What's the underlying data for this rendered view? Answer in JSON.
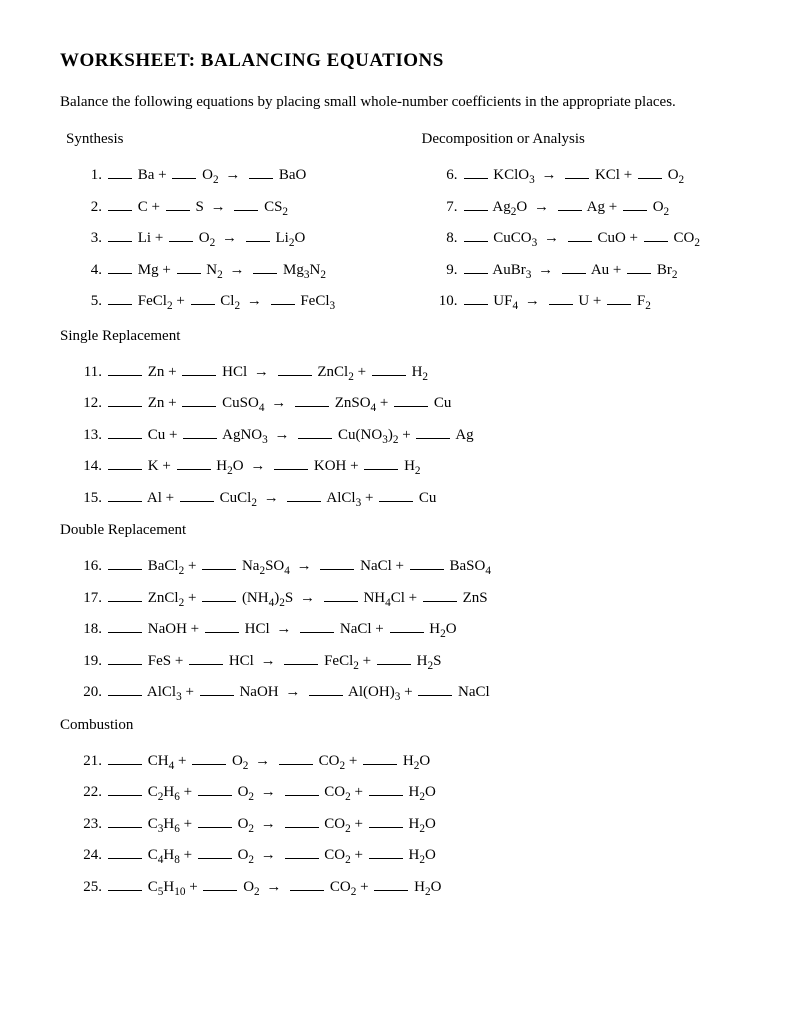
{
  "title": "WORKSHEET:  BALANCING EQUATIONS",
  "instructions": "Balance the following equations by placing small whole-number coefficients in the appropriate places.",
  "arrow": "→",
  "sections": {
    "synthesis": {
      "label": "Synthesis",
      "items": [
        {
          "n": "1.",
          "parts": [
            "Ba +",
            "O₂",
            "BaO"
          ]
        },
        {
          "n": "2.",
          "parts": [
            "C +",
            "S",
            "CS₂"
          ]
        },
        {
          "n": "3.",
          "parts": [
            "Li +",
            "O₂",
            "Li₂O"
          ]
        },
        {
          "n": "4.",
          "parts": [
            "Mg +",
            "N₂",
            "Mg₃N₂"
          ]
        },
        {
          "n": "5.",
          "parts": [
            "FeCl₂ +",
            "Cl₂",
            "FeCl₃"
          ]
        }
      ]
    },
    "decomposition": {
      "label": "Decomposition or Analysis",
      "items": [
        {
          "n": "6.",
          "parts": [
            "KClO₃",
            "KCl +",
            "O₂"
          ]
        },
        {
          "n": "7.",
          "parts": [
            "Ag₂O",
            "Ag +",
            "O₂"
          ]
        },
        {
          "n": "8.",
          "parts": [
            "CuCO₃",
            "CuO +",
            "CO₂"
          ]
        },
        {
          "n": "9.",
          "parts": [
            "AuBr₃",
            "Au +",
            "Br₂"
          ]
        },
        {
          "n": "10.",
          "parts": [
            "UF₄",
            "U +",
            "F₂"
          ]
        }
      ]
    },
    "single": {
      "label": "Single Replacement",
      "items": [
        {
          "n": "11.",
          "parts": [
            "Zn +",
            "HCl",
            "ZnCl₂ +",
            "H₂"
          ]
        },
        {
          "n": "12.",
          "parts": [
            "Zn +",
            "CuSO₄",
            "ZnSO₄ +",
            "Cu"
          ]
        },
        {
          "n": "13.",
          "parts": [
            "Cu +",
            "AgNO₃",
            "Cu(NO₃)₂ +",
            "Ag"
          ]
        },
        {
          "n": "14.",
          "parts": [
            "K +",
            "H₂O",
            "KOH +",
            "H₂"
          ]
        },
        {
          "n": "15.",
          "parts": [
            "Al +",
            "CuCl₂",
            "AlCl₃  +",
            "Cu"
          ]
        }
      ]
    },
    "double": {
      "label": "Double Replacement",
      "items": [
        {
          "n": "16.",
          "parts": [
            "BaCl₂ +",
            "Na₂SO₄",
            "NaCl +",
            "BaSO₄"
          ]
        },
        {
          "n": "17.",
          "parts": [
            "ZnCl₂  +",
            "(NH₄)₂S",
            "NH₄Cl +",
            "ZnS"
          ]
        },
        {
          "n": "18.",
          "parts": [
            "NaOH +",
            "HCl",
            "NaCl +",
            "H₂O"
          ]
        },
        {
          "n": "19.",
          "parts": [
            "FeS +",
            "HCl",
            "FeCl₂ +",
            "H₂S"
          ]
        },
        {
          "n": "20.",
          "parts": [
            "AlCl₃  +",
            "NaOH",
            "Al(OH)₃ +",
            "NaCl"
          ]
        }
      ]
    },
    "combustion": {
      "label": "Combustion",
      "items": [
        {
          "n": "21.",
          "parts": [
            "CH₄  +",
            "O₂",
            "CO₂  +",
            "H₂O"
          ]
        },
        {
          "n": "22.",
          "parts": [
            "C₂H₆ +",
            "O₂",
            "CO₂  +",
            "H₂O"
          ]
        },
        {
          "n": "23.",
          "parts": [
            "C₃H₆ +",
            "O₂",
            "CO₂  +",
            "H₂O"
          ]
        },
        {
          "n": "24.",
          "parts": [
            "C₄H₈ +",
            "O₂",
            "CO₂  +",
            "H₂O"
          ]
        },
        {
          "n": "25.",
          "parts": [
            "C₅H₁₀ +",
            "O₂",
            "CO₂ +",
            "H₂O"
          ]
        }
      ]
    }
  }
}
